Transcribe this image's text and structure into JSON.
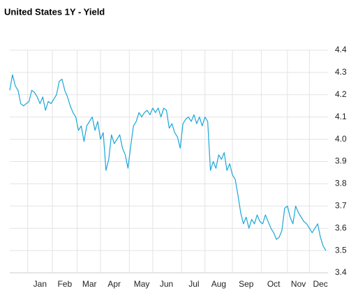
{
  "chart_data": {
    "type": "line",
    "title": "United States 1Y - Yield",
    "categories": [
      null,
      null,
      null,
      null,
      null,
      null,
      null,
      null,
      null,
      null,
      null,
      "Jan",
      null,
      null,
      null,
      null,
      null,
      null,
      null,
      null,
      "Feb",
      null,
      null,
      null,
      null,
      null,
      null,
      null,
      null,
      "Mar",
      null,
      null,
      null,
      null,
      null,
      null,
      null,
      null,
      "Apr",
      null,
      null,
      null,
      null,
      null,
      null,
      null,
      null,
      null,
      "May",
      null,
      null,
      null,
      null,
      null,
      null,
      null,
      null,
      "Jun",
      null,
      null,
      null,
      null,
      null,
      null,
      null,
      null,
      null,
      "Jul",
      null,
      null,
      null,
      null,
      null,
      null,
      null,
      null,
      "Aug",
      null,
      null,
      null,
      null,
      null,
      null,
      null,
      null,
      null,
      "Sep",
      null,
      null,
      null,
      null,
      null,
      null,
      null,
      null,
      null,
      "Oct",
      null,
      null,
      null,
      null,
      null,
      null,
      null,
      null,
      "Nov",
      null,
      null,
      null,
      null,
      null,
      null,
      null,
      "Dec",
      null,
      null
    ],
    "series": [
      {
        "name": "United States 1Y",
        "color": "#1aa6d9",
        "values": [
          4.22,
          4.29,
          4.24,
          4.22,
          4.16,
          4.15,
          4.16,
          4.17,
          4.22,
          4.21,
          4.19,
          4.16,
          4.19,
          4.13,
          4.17,
          4.16,
          4.18,
          4.2,
          4.26,
          4.27,
          4.22,
          4.19,
          4.15,
          4.12,
          4.1,
          4.04,
          4.06,
          3.99,
          4.06,
          4.08,
          4.1,
          4.04,
          4.08,
          4.0,
          4.03,
          3.86,
          3.91,
          4.02,
          3.98,
          4.0,
          4.02,
          3.96,
          3.93,
          3.87,
          3.97,
          4.06,
          4.08,
          4.12,
          4.1,
          4.12,
          4.13,
          4.11,
          4.14,
          4.12,
          4.14,
          4.1,
          4.14,
          4.13,
          4.05,
          4.07,
          4.03,
          4.01,
          3.96,
          4.07,
          4.09,
          4.1,
          4.08,
          4.11,
          4.07,
          4.1,
          4.06,
          4.1,
          4.08,
          3.86,
          3.9,
          3.87,
          3.93,
          3.91,
          3.94,
          3.86,
          3.89,
          3.84,
          3.82,
          3.75,
          3.67,
          3.62,
          3.65,
          3.6,
          3.64,
          3.62,
          3.66,
          3.63,
          3.62,
          3.66,
          3.63,
          3.6,
          3.58,
          3.55,
          3.56,
          3.59,
          3.69,
          3.7,
          3.65,
          3.62,
          3.7,
          3.67,
          3.65,
          3.63,
          3.62,
          3.6,
          3.58,
          3.6,
          3.62,
          3.56,
          3.52,
          3.5
        ]
      }
    ],
    "ylim": [
      3.4,
      4.4
    ],
    "yticks": [
      3.4,
      3.5,
      3.6,
      3.7,
      3.8,
      3.9,
      {
        "value": 4.0,
        "label": "4.0"
      },
      4.1,
      4.2,
      4.3,
      4.4
    ],
    "grid": true
  }
}
